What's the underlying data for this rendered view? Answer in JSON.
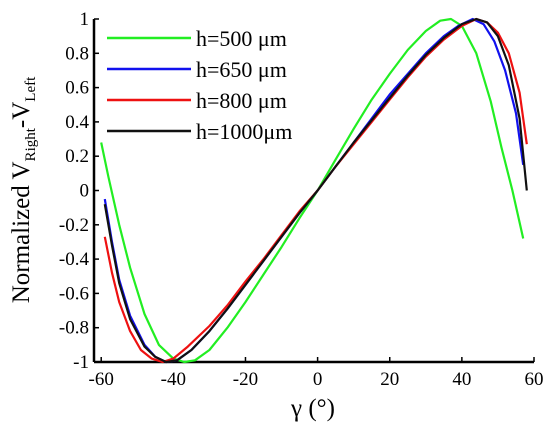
{
  "chart_data": {
    "type": "line",
    "title": "",
    "xlabel": "γ (°)",
    "ylabel": {
      "main": "Normalized V",
      "sub1": "Right",
      "sep": "-V",
      "sub2": "Left"
    },
    "xlim": [
      -62,
      60
    ],
    "ylim": [
      -1,
      1
    ],
    "x_ticks": [
      {
        "value": -60,
        "label": "-60"
      },
      {
        "value": -40,
        "label": "-40"
      },
      {
        "value": -20,
        "label": "-20"
      },
      {
        "value": 0,
        "label": "0"
      },
      {
        "value": 20,
        "label": "20"
      },
      {
        "value": 40,
        "label": "40"
      },
      {
        "value": 60,
        "label": "60"
      }
    ],
    "y_ticks": [
      {
        "value": -1,
        "label": "-1"
      },
      {
        "value": -0.8,
        "label": "-0.8"
      },
      {
        "value": -0.6,
        "label": "-0.6"
      },
      {
        "value": -0.4,
        "label": "-0.4"
      },
      {
        "value": -0.2,
        "label": "-0.2"
      },
      {
        "value": 0,
        "label": "0"
      },
      {
        "value": 0.2,
        "label": "0.2"
      },
      {
        "value": 0.4,
        "label": "0.4"
      },
      {
        "value": 0.6,
        "label": "0.6"
      },
      {
        "value": 0.8,
        "label": "0.8"
      },
      {
        "value": 1,
        "label": "1"
      }
    ],
    "grid": false,
    "legend_position": "top-left",
    "series": [
      {
        "name": "h=500  μm",
        "color": "#22ee22",
        "points": [
          [
            -60,
            0.28
          ],
          [
            -58,
            0.08
          ],
          [
            -55,
            -0.2
          ],
          [
            -52,
            -0.45
          ],
          [
            -48,
            -0.72
          ],
          [
            -44,
            -0.9
          ],
          [
            -40,
            -0.98
          ],
          [
            -37,
            -1.0
          ],
          [
            -34,
            -0.99
          ],
          [
            -30,
            -0.93
          ],
          [
            -25,
            -0.8
          ],
          [
            -20,
            -0.65
          ],
          [
            -15,
            -0.49
          ],
          [
            -10,
            -0.33
          ],
          [
            -5,
            -0.16
          ],
          [
            0,
            0.0
          ],
          [
            5,
            0.18
          ],
          [
            10,
            0.36
          ],
          [
            15,
            0.53
          ],
          [
            20,
            0.68
          ],
          [
            25,
            0.82
          ],
          [
            30,
            0.93
          ],
          [
            34,
            0.99
          ],
          [
            37,
            1.0
          ],
          [
            40,
            0.96
          ],
          [
            44,
            0.8
          ],
          [
            48,
            0.52
          ],
          [
            51,
            0.25
          ],
          [
            54,
            0.0
          ],
          [
            57,
            -0.28
          ]
        ]
      },
      {
        "name": "h=650  μm",
        "color": "#1111ee",
        "points": [
          [
            -59,
            -0.05
          ],
          [
            -57,
            -0.3
          ],
          [
            -55,
            -0.52
          ],
          [
            -52,
            -0.73
          ],
          [
            -48,
            -0.9
          ],
          [
            -45,
            -0.97
          ],
          [
            -42,
            -1.0
          ],
          [
            -39,
            -0.99
          ],
          [
            -35,
            -0.93
          ],
          [
            -30,
            -0.82
          ],
          [
            -25,
            -0.69
          ],
          [
            -20,
            -0.55
          ],
          [
            -15,
            -0.41
          ],
          [
            -10,
            -0.27
          ],
          [
            -5,
            -0.13
          ],
          [
            0,
            0.0
          ],
          [
            5,
            0.14
          ],
          [
            10,
            0.28
          ],
          [
            15,
            0.42
          ],
          [
            20,
            0.56
          ],
          [
            25,
            0.68
          ],
          [
            30,
            0.8
          ],
          [
            35,
            0.9
          ],
          [
            39,
            0.96
          ],
          [
            43,
            1.0
          ],
          [
            46,
            0.97
          ],
          [
            49,
            0.87
          ],
          [
            52,
            0.7
          ],
          [
            55,
            0.45
          ],
          [
            57,
            0.15
          ]
        ]
      },
      {
        "name": "h=800  μm",
        "color": "#ee1111",
        "points": [
          [
            -59,
            -0.27
          ],
          [
            -57,
            -0.48
          ],
          [
            -55,
            -0.65
          ],
          [
            -52,
            -0.82
          ],
          [
            -49,
            -0.93
          ],
          [
            -46,
            -0.98
          ],
          [
            -43,
            -1.0
          ],
          [
            -40,
            -0.98
          ],
          [
            -36,
            -0.91
          ],
          [
            -30,
            -0.79
          ],
          [
            -25,
            -0.67
          ],
          [
            -20,
            -0.53
          ],
          [
            -15,
            -0.4
          ],
          [
            -10,
            -0.26
          ],
          [
            -5,
            -0.12
          ],
          [
            0,
            0.0
          ],
          [
            5,
            0.14
          ],
          [
            10,
            0.27
          ],
          [
            15,
            0.4
          ],
          [
            20,
            0.53
          ],
          [
            25,
            0.66
          ],
          [
            30,
            0.78
          ],
          [
            35,
            0.88
          ],
          [
            40,
            0.96
          ],
          [
            44,
            1.0
          ],
          [
            47,
            0.98
          ],
          [
            50,
            0.92
          ],
          [
            53,
            0.8
          ],
          [
            56,
            0.57
          ],
          [
            58,
            0.27
          ]
        ]
      },
      {
        "name": "h=1000μm",
        "color": "#111111",
        "points": [
          [
            -59,
            -0.08
          ],
          [
            -57,
            -0.32
          ],
          [
            -55,
            -0.54
          ],
          [
            -52,
            -0.75
          ],
          [
            -48,
            -0.91
          ],
          [
            -45,
            -0.97
          ],
          [
            -42,
            -1.0
          ],
          [
            -39,
            -0.99
          ],
          [
            -35,
            -0.93
          ],
          [
            -30,
            -0.82
          ],
          [
            -25,
            -0.69
          ],
          [
            -20,
            -0.55
          ],
          [
            -15,
            -0.41
          ],
          [
            -10,
            -0.27
          ],
          [
            -5,
            -0.13
          ],
          [
            0,
            0.0
          ],
          [
            5,
            0.14
          ],
          [
            10,
            0.28
          ],
          [
            15,
            0.41
          ],
          [
            20,
            0.54
          ],
          [
            25,
            0.67
          ],
          [
            30,
            0.79
          ],
          [
            35,
            0.89
          ],
          [
            40,
            0.97
          ],
          [
            44,
            1.0
          ],
          [
            47,
            0.98
          ],
          [
            50,
            0.9
          ],
          [
            53,
            0.73
          ],
          [
            56,
            0.42
          ],
          [
            58,
            0.0
          ]
        ]
      }
    ]
  }
}
